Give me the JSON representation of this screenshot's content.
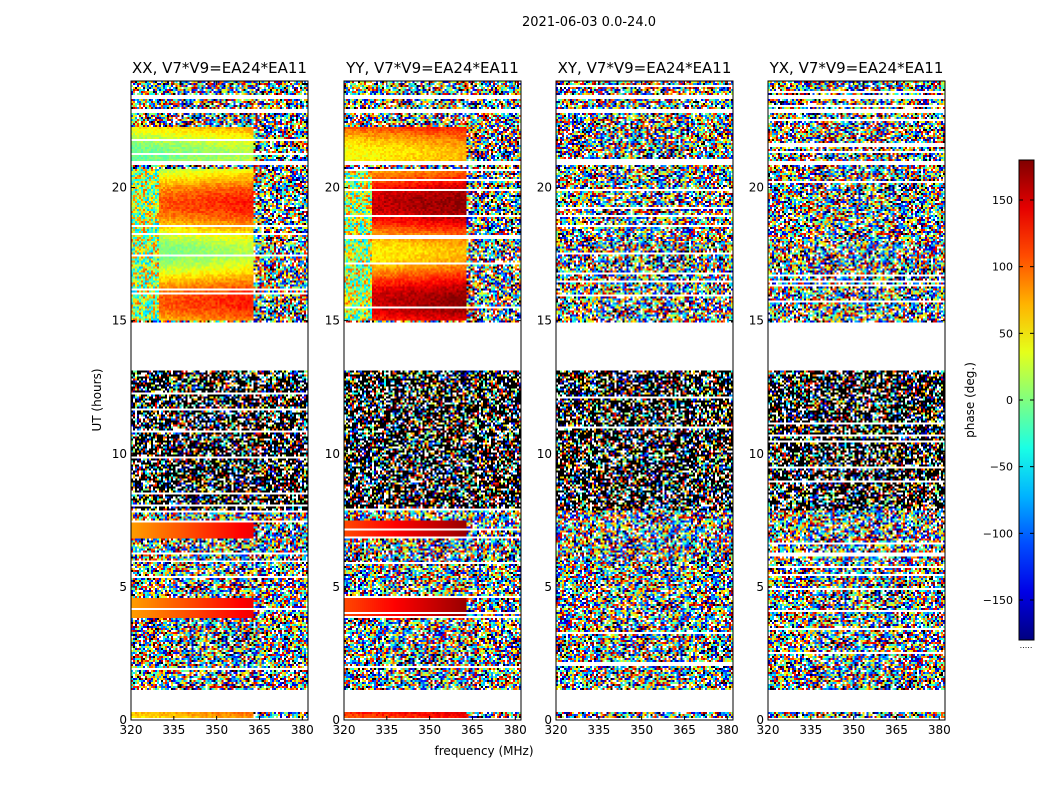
{
  "chart_data": {
    "type": "heatmap",
    "title": "2021-06-03 0.0-24.0",
    "xlabel": "frequency (MHz)",
    "ylabel": "UT (hours)",
    "xlim": [
      320,
      382
    ],
    "ylim": [
      0,
      24
    ],
    "x_ticks": [
      "320",
      "335",
      "350",
      "365",
      "380"
    ],
    "x_tick_values": [
      320,
      335,
      350,
      365,
      380
    ],
    "y_ticks": [
      "0",
      "5",
      "10",
      "15",
      "20"
    ],
    "y_tick_values": [
      0,
      5,
      10,
      15,
      20
    ],
    "colorbar": {
      "label": "phase (deg.)",
      "range": [
        -180,
        180
      ],
      "ticks": [
        "150",
        "100",
        "50",
        "0",
        "−50",
        "−100",
        "−150"
      ],
      "tick_values": [
        150,
        100,
        50,
        0,
        -50,
        -100,
        -150
      ],
      "colormap": "jet",
      "footnote": "....."
    },
    "panels": [
      {
        "title": "XX, V7*V9=EA24*EA11",
        "pol": "XX",
        "parallel": true,
        "hue_shift": 0
      },
      {
        "title": "YY, V7*V9=EA24*EA11",
        "pol": "YY",
        "parallel": true,
        "hue_shift": 0.14
      },
      {
        "title": "XY, V7*V9=EA24*EA11",
        "pol": "XY",
        "parallel": false,
        "hue_shift": 0
      },
      {
        "title": "YX, V7*V9=EA24*EA11",
        "pol": "YX",
        "parallel": false,
        "hue_shift": 0
      }
    ],
    "time_structure": {
      "gaps_hours": [
        [
          0.0,
          0.05
        ],
        [
          0.33,
          1.1
        ],
        [
          13.1,
          14.9
        ],
        [
          23.3,
          23.45
        ],
        [
          22.8,
          22.95
        ],
        [
          20.85,
          21.0
        ]
      ],
      "noisy_dense_hours": [
        7.9,
        13.1
      ],
      "coherent_bands_hours": [
        [
          3.8,
          4.6
        ],
        [
          6.8,
          7.5
        ],
        [
          15.0,
          20.7
        ],
        [
          21.0,
          22.3
        ],
        [
          0.05,
          0.3
        ]
      ],
      "coherent_cutoff_mhz": 363
    }
  }
}
